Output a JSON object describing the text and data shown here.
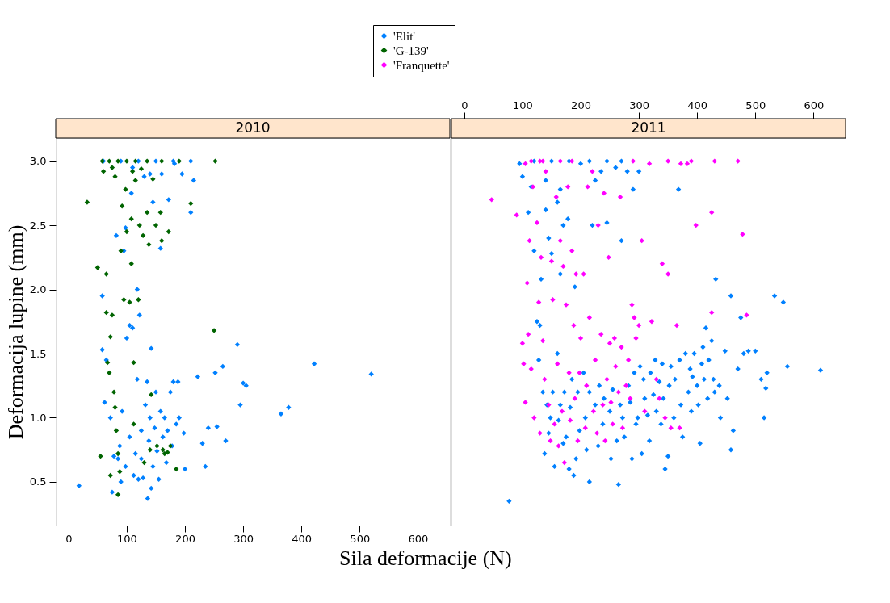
{
  "chart_data": [
    {
      "type": "scatter",
      "title": "2010",
      "xlabel": "Sila deformacije (N)",
      "ylabel": "Deformacija lupine (mm)",
      "xlim": [
        -22,
        655
      ],
      "xticks": [
        0,
        100,
        200,
        300,
        400,
        500,
        600
      ],
      "ylim": [
        0.16,
        3.18
      ],
      "yticks": [
        0.5,
        {
          "value": 1,
          "label": "1.0"
        },
        1.5,
        {
          "value": 2,
          "label": "2.0"
        },
        2.5,
        {
          "value": 3,
          "label": "3.0"
        }
      ],
      "marker": "diamond",
      "legend": "top",
      "grid": false,
      "series": [
        {
          "name": "'Elit'",
          "color": "#0080ff",
          "x": [
            18,
            58,
            58,
            62,
            65,
            72,
            75,
            78,
            82,
            85,
            88,
            90,
            92,
            95,
            98,
            98,
            100,
            105,
            105,
            108,
            110,
            112,
            115,
            118,
            118,
            120,
            122,
            125,
            125,
            128,
            130,
            132,
            135,
            136,
            138,
            140,
            142,
            142,
            145,
            145,
            148,
            150,
            152,
            155,
            158,
            158,
            160,
            162,
            165,
            168,
            170,
            172,
            175,
            178,
            180,
            182,
            185,
            188,
            190,
            195,
            198,
            200,
            210,
            215,
            222,
            230,
            235,
            240,
            252,
            255,
            265,
            270,
            290,
            295,
            300,
            305,
            365,
            378,
            422,
            520,
            60,
            90,
            120,
            150,
            180,
            210,
            110,
            140
          ],
          "values": [
            0.47,
            1.53,
            1.95,
            1.12,
            1.45,
            1.0,
            0.42,
            0.7,
            2.42,
            0.68,
            0.78,
            0.5,
            1.05,
            2.3,
            2.48,
            0.62,
            1.62,
            1.72,
            0.85,
            2.75,
            1.7,
            0.55,
            0.72,
            2.0,
            1.3,
            0.52,
            1.8,
            0.9,
            0.68,
            0.53,
            2.88,
            1.1,
            1.28,
            0.37,
            0.82,
            1.0,
            1.54,
            0.45,
            2.68,
            0.62,
            0.92,
            1.2,
            0.74,
            0.52,
            2.32,
            1.05,
            2.9,
            0.85,
            1.0,
            0.65,
            0.9,
            2.7,
            1.2,
            0.78,
            1.28,
            2.98,
            0.95,
            1.28,
            1.0,
            2.9,
            0.88,
            0.6,
            2.6,
            2.85,
            1.32,
            0.8,
            0.62,
            0.92,
            1.35,
            0.93,
            1.4,
            0.82,
            1.57,
            1.1,
            1.27,
            1.25,
            1.03,
            1.08,
            1.42,
            1.34,
            3.0,
            3.0,
            3.0,
            3.0,
            3.0,
            3.0,
            2.95,
            2.9
          ]
        },
        {
          "name": "'G-139'",
          "color": "#006400",
          "x": [
            32,
            50,
            55,
            65,
            65,
            67,
            70,
            72,
            72,
            75,
            78,
            80,
            82,
            85,
            85,
            88,
            90,
            92,
            95,
            98,
            100,
            105,
            108,
            108,
            110,
            112,
            112,
            115,
            120,
            122,
            128,
            130,
            135,
            138,
            140,
            142,
            145,
            150,
            152,
            158,
            160,
            162,
            165,
            170,
            172,
            175,
            185,
            210,
            250,
            252,
            58,
            70,
            85,
            100,
            115,
            135,
            160,
            190,
            60,
            75,
            80,
            125
          ],
          "values": [
            2.68,
            2.17,
            0.7,
            2.12,
            1.82,
            1.43,
            1.35,
            0.55,
            1.63,
            1.8,
            1.2,
            1.08,
            0.9,
            0.4,
            0.72,
            0.58,
            2.3,
            2.65,
            1.92,
            2.78,
            2.45,
            1.9,
            2.55,
            2.2,
            2.92,
            0.95,
            1.43,
            2.85,
            1.92,
            2.5,
            2.42,
            0.65,
            2.6,
            2.35,
            0.75,
            1.18,
            2.86,
            2.5,
            0.78,
            2.6,
            2.38,
            0.75,
            0.72,
            0.73,
            2.45,
            0.78,
            0.6,
            2.67,
            1.68,
            3.0,
            3.0,
            3.0,
            3.0,
            3.0,
            3.0,
            3.0,
            3.0,
            3.0,
            2.92,
            2.95,
            2.88,
            2.94
          ]
        }
      ]
    },
    {
      "type": "scatter",
      "title": "2011",
      "xlim": [
        -22,
        655
      ],
      "xticks": [
        0,
        100,
        200,
        300,
        400,
        500,
        600
      ],
      "ylim": [
        0.16,
        3.18
      ],
      "yticks": [
        0.5,
        1,
        1.5,
        2,
        2.5,
        3
      ],
      "marker": "diamond",
      "legend": "top",
      "grid": false,
      "tick_labels": "x",
      "series": [
        {
          "name": "'Elit'",
          "color": "#0080ff",
          "x": [
            77,
            95,
            100,
            110,
            115,
            120,
            125,
            128,
            130,
            132,
            135,
            138,
            140,
            142,
            145,
            145,
            148,
            150,
            152,
            155,
            160,
            160,
            162,
            165,
            165,
            170,
            170,
            172,
            175,
            178,
            180,
            182,
            185,
            188,
            190,
            192,
            195,
            198,
            200,
            205,
            208,
            210,
            215,
            215,
            220,
            225,
            230,
            232,
            235,
            238,
            240,
            245,
            250,
            252,
            255,
            260,
            262,
            265,
            268,
            270,
            272,
            275,
            280,
            282,
            285,
            288,
            290,
            292,
            295,
            298,
            300,
            302,
            305,
            308,
            310,
            315,
            318,
            320,
            325,
            328,
            330,
            335,
            338,
            340,
            342,
            345,
            350,
            352,
            355,
            360,
            362,
            368,
            370,
            372,
            375,
            380,
            385,
            388,
            390,
            392,
            395,
            400,
            402,
            405,
            408,
            410,
            412,
            415,
            418,
            420,
            425,
            428,
            430,
            432,
            438,
            440,
            448,
            452,
            458,
            458,
            462,
            470,
            475,
            480,
            488,
            500,
            510,
            515,
            518,
            520,
            533,
            548,
            555,
            612,
            120,
            150,
            180,
            215,
            245,
            270,
            165,
            140,
            225
          ],
          "values": [
            0.35,
            2.98,
            2.88,
            2.6,
            2.8,
            2.3,
            1.75,
            1.45,
            1.72,
            2.08,
            1.2,
            0.72,
            2.62,
            1.1,
            2.4,
            0.88,
            1.0,
            2.28,
            1.2,
            0.62,
            2.68,
            1.5,
            0.98,
            2.12,
            1.1,
            2.5,
            0.8,
            1.2,
            0.85,
            2.55,
            0.6,
            1.08,
            1.3,
            0.55,
            2.02,
            0.68,
            1.2,
            0.9,
            2.98,
            1.35,
            1.0,
            0.75,
            0.5,
            1.2,
            2.5,
            1.1,
            0.78,
            1.25,
            2.92,
            0.95,
            1.15,
            2.52,
            1.05,
            0.68,
            1.22,
            2.95,
            0.82,
            0.48,
            1.1,
            2.38,
            1.0,
            0.85,
            2.92,
            1.25,
            1.12,
            0.68,
            2.78,
            1.35,
            0.95,
            1.0,
            2.92,
            1.4,
            0.72,
            1.3,
            1.15,
            1.02,
            0.82,
            1.35,
            1.18,
            1.45,
            1.05,
            1.28,
            0.95,
            1.42,
            1.15,
            0.6,
            0.7,
            1.25,
            1.4,
            1.0,
            1.3,
            2.78,
            1.45,
            1.1,
            0.85,
            1.5,
            1.2,
            1.38,
            1.05,
            1.32,
            1.5,
            1.25,
            1.1,
            0.8,
            1.42,
            1.55,
            1.3,
            1.7,
            1.15,
            1.45,
            1.6,
            1.3,
            1.2,
            2.08,
            1.25,
            1.0,
            1.52,
            1.15,
            1.95,
            0.75,
            0.9,
            1.38,
            1.78,
            1.5,
            1.52,
            1.52,
            1.3,
            1.0,
            1.23,
            1.35,
            1.95,
            1.9,
            1.4,
            1.37,
            3.0,
            3.0,
            3.0,
            3.0,
            3.0,
            3.0,
            2.78,
            2.85,
            2.85
          ]
        },
        {
          "name": "'Franquette'",
          "color": "#ff00ff",
          "x": [
            47,
            90,
            100,
            102,
            105,
            108,
            110,
            112,
            115,
            118,
            120,
            125,
            128,
            130,
            132,
            135,
            138,
            140,
            145,
            148,
            150,
            152,
            155,
            158,
            160,
            162,
            165,
            168,
            170,
            172,
            175,
            178,
            180,
            182,
            185,
            188,
            190,
            192,
            195,
            198,
            200,
            205,
            208,
            210,
            212,
            215,
            220,
            222,
            225,
            228,
            230,
            235,
            238,
            240,
            242,
            245,
            248,
            250,
            252,
            255,
            258,
            260,
            265,
            268,
            270,
            272,
            278,
            282,
            285,
            288,
            292,
            295,
            300,
            305,
            310,
            318,
            322,
            330,
            335,
            340,
            345,
            350,
            355,
            365,
            370,
            383,
            398,
            425,
            115,
            135,
            165,
            185,
            290,
            350,
            372,
            390,
            425,
            430,
            470,
            478,
            485,
            130,
            105
          ],
          "values": [
            2.7,
            2.58,
            1.58,
            1.42,
            1.12,
            2.05,
            1.65,
            2.38,
            1.38,
            2.8,
            1.0,
            2.52,
            1.9,
            0.88,
            2.25,
            1.6,
            1.3,
            2.92,
            1.1,
            0.82,
            2.22,
            1.92,
            0.95,
            2.72,
            1.42,
            0.78,
            2.38,
            1.05,
            2.18,
            0.65,
            1.88,
            2.8,
            1.35,
            0.98,
            2.3,
            1.72,
            1.15,
            2.12,
            0.82,
            1.35,
            1.62,
            2.12,
            0.92,
            1.25,
            2.8,
            1.78,
            2.92,
            1.05,
            1.45,
            0.88,
            2.5,
            1.65,
            1.1,
            2.75,
            0.82,
            1.3,
            2.25,
            1.58,
            1.12,
            0.95,
            1.62,
            1.4,
            1.2,
            2.72,
            1.55,
            0.92,
            1.25,
            1.45,
            1.15,
            1.88,
            1.78,
            1.62,
            1.72,
            2.38,
            1.05,
            2.98,
            1.75,
            1.3,
            1.15,
            2.2,
            1.0,
            2.12,
            0.92,
            1.72,
            0.92,
            2.98,
            2.5,
            1.82,
            3.0,
            3.0,
            3.0,
            3.0,
            3.0,
            3.0,
            2.98,
            3.0,
            2.6,
            3.0,
            3.0,
            2.43,
            1.8,
            3.0,
            2.98
          ]
        }
      ]
    }
  ]
}
